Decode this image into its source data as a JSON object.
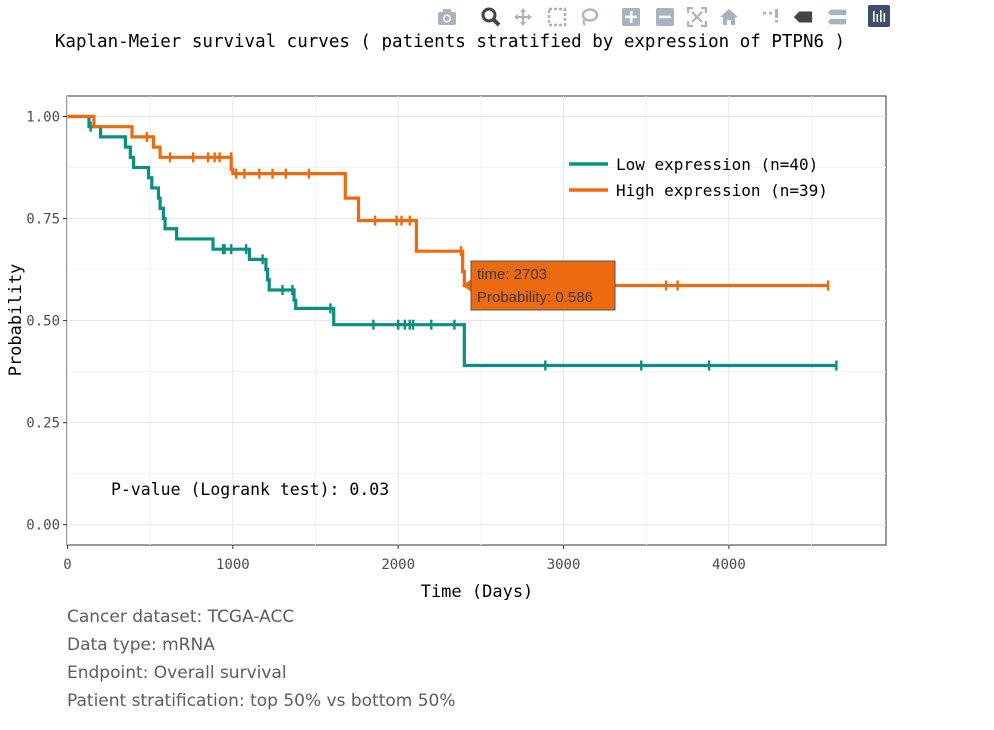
{
  "modebar": {
    "buttons": [
      {
        "name": "camera-icon"
      },
      {
        "name": "zoom-icon"
      },
      {
        "name": "pan-icon"
      },
      {
        "name": "box-select-icon"
      },
      {
        "name": "lasso-select-icon"
      },
      {
        "name": "zoom-in-icon"
      },
      {
        "name": "zoom-out-icon"
      },
      {
        "name": "autoscale-icon"
      },
      {
        "name": "home-icon"
      },
      {
        "name": "spike-lines-icon"
      },
      {
        "name": "hover-closest-icon"
      },
      {
        "name": "hover-compare-icon"
      },
      {
        "name": "plotly-logo-icon"
      }
    ]
  },
  "info": {
    "dataset": "Cancer dataset: TCGA-ACC",
    "datatype": "Data type: mRNA",
    "endpoint": "Endpoint: Overall survival",
    "stratification": "Patient stratification: top 50% vs bottom 50%"
  },
  "chart_data": {
    "type": "line",
    "title": "Kaplan-Meier survival curves ( patients stratified by expression of PTPN6 )",
    "xlabel": "Time (Days)",
    "ylabel": "Probability",
    "xlim": [
      0,
      4900
    ],
    "ylim": [
      -0.05,
      1.05
    ],
    "xticks": [
      0,
      1000,
      2000,
      3000,
      4000
    ],
    "yticks": [
      0,
      0.25,
      0.5,
      0.75,
      1.0
    ],
    "xtick_labels": [
      "0",
      "1000",
      "2000",
      "3000",
      "4000"
    ],
    "ytick_labels": [
      "0.00",
      "0.25",
      "0.50",
      "0.75",
      "1.00"
    ],
    "grid": true,
    "legend_position": "top-right",
    "annotation": "P-value (Logrank test): 0.03",
    "series": [
      {
        "name": "Low expression (n=40)",
        "color": "#0a8f82",
        "steps": [
          [
            0,
            1.0
          ],
          [
            130,
            0.975
          ],
          [
            200,
            0.95
          ],
          [
            350,
            0.925
          ],
          [
            380,
            0.9
          ],
          [
            400,
            0.875
          ],
          [
            490,
            0.85
          ],
          [
            510,
            0.825
          ],
          [
            550,
            0.8
          ],
          [
            560,
            0.775
          ],
          [
            580,
            0.75
          ],
          [
            590,
            0.725
          ],
          [
            660,
            0.7
          ],
          [
            880,
            0.675
          ],
          [
            1100,
            0.65
          ],
          [
            1200,
            0.625
          ],
          [
            1210,
            0.6
          ],
          [
            1220,
            0.575
          ],
          [
            1370,
            0.55
          ],
          [
            1380,
            0.53
          ],
          [
            1610,
            0.49
          ],
          [
            2400,
            0.39
          ],
          [
            4650,
            0.39
          ]
        ],
        "censors": [
          [
            140,
            0.975
          ],
          [
            940,
            0.675
          ],
          [
            950,
            0.675
          ],
          [
            990,
            0.675
          ],
          [
            1080,
            0.675
          ],
          [
            1180,
            0.65
          ],
          [
            1300,
            0.575
          ],
          [
            1360,
            0.575
          ],
          [
            1590,
            0.53
          ],
          [
            1850,
            0.49
          ],
          [
            2000,
            0.49
          ],
          [
            2040,
            0.49
          ],
          [
            2070,
            0.49
          ],
          [
            2090,
            0.49
          ],
          [
            2200,
            0.49
          ],
          [
            2340,
            0.49
          ],
          [
            2890,
            0.39
          ],
          [
            3470,
            0.39
          ],
          [
            3880,
            0.39
          ],
          [
            4650,
            0.39
          ]
        ]
      },
      {
        "name": "High expression (n=39)",
        "color": "#ee6a0f",
        "steps": [
          [
            0,
            1.0
          ],
          [
            160,
            0.975
          ],
          [
            390,
            0.95
          ],
          [
            520,
            0.925
          ],
          [
            560,
            0.9
          ],
          [
            990,
            0.87
          ],
          [
            1000,
            0.86
          ],
          [
            1680,
            0.8
          ],
          [
            1760,
            0.745
          ],
          [
            2110,
            0.67
          ],
          [
            2390,
            0.62
          ],
          [
            2400,
            0.586
          ],
          [
            4600,
            0.586
          ]
        ],
        "censors": [
          [
            480,
            0.95
          ],
          [
            620,
            0.9
          ],
          [
            760,
            0.9
          ],
          [
            850,
            0.9
          ],
          [
            890,
            0.9
          ],
          [
            920,
            0.9
          ],
          [
            990,
            0.9
          ],
          [
            1020,
            0.86
          ],
          [
            1070,
            0.86
          ],
          [
            1160,
            0.86
          ],
          [
            1240,
            0.86
          ],
          [
            1320,
            0.86
          ],
          [
            1460,
            0.86
          ],
          [
            1860,
            0.745
          ],
          [
            1990,
            0.745
          ],
          [
            2020,
            0.745
          ],
          [
            2070,
            0.745
          ],
          [
            2380,
            0.67
          ],
          [
            3620,
            0.586
          ],
          [
            3690,
            0.586
          ],
          [
            4600,
            0.586
          ]
        ]
      }
    ],
    "tooltip": {
      "time_label": "time: 2703",
      "prob_label": "Probability: 0.586",
      "x": 2703,
      "y": 0.586,
      "series": "High expression (n=39)"
    }
  }
}
